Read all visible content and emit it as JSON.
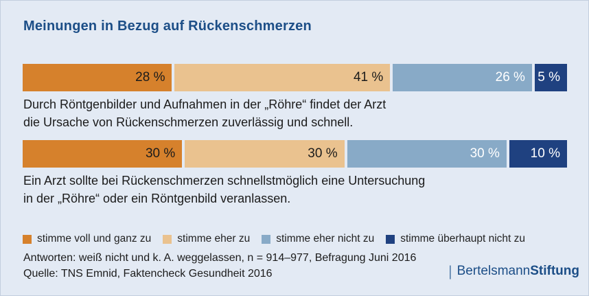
{
  "title": "Meinungen in Bezug auf Rückenschmerzen",
  "chart_data": {
    "type": "bar",
    "stacked": true,
    "orientation": "horizontal",
    "unit": "%",
    "categories": [
      "stimme voll und ganz zu",
      "stimme eher zu",
      "stimme eher nicht zu",
      "stimme überhaupt nicht zu"
    ],
    "colors": [
      "#D6812C",
      "#EAC28F",
      "#88AAC7",
      "#1F4180"
    ],
    "label_colors": [
      "#1B1B1B",
      "#1B1B1B",
      "#FFFFFF",
      "#FFFFFF"
    ],
    "rows": [
      {
        "statement": [
          "Durch Röntgenbilder und Aufnahmen in der „Röhre“ findet der Arzt",
          "die Ursache von Rückenschmerzen zuverlässig und schnell."
        ],
        "values": [
          28,
          41,
          26,
          5
        ],
        "labels": [
          "28 %",
          "41 %",
          "26 %",
          "5 %"
        ]
      },
      {
        "statement": [
          "Ein Arzt sollte bei Rückenschmerzen schnellstmöglich eine Untersuchung",
          "in der „Röhre“ oder ein Röntgenbild veranlassen."
        ],
        "values": [
          30,
          30,
          30,
          10
        ],
        "labels": [
          "30 %",
          "30 %",
          "30 %",
          "10 %"
        ]
      }
    ],
    "legend_position": "bottom",
    "xlim": [
      0,
      100
    ]
  },
  "footer": {
    "note": "Antworten: weiß nicht und k. A. weggelassen, n = 914–977, Befragung Juni 2016",
    "source": "Quelle: TNS Emnid, Faktencheck Gesundheit 2016"
  },
  "logo": {
    "separator": "|",
    "name_regular": "Bertelsmann",
    "name_bold": "Stiftung"
  },
  "theme": {
    "background": "#E3EAF4",
    "title_color": "#1C4E87",
    "text_color": "#1B1B1B"
  }
}
